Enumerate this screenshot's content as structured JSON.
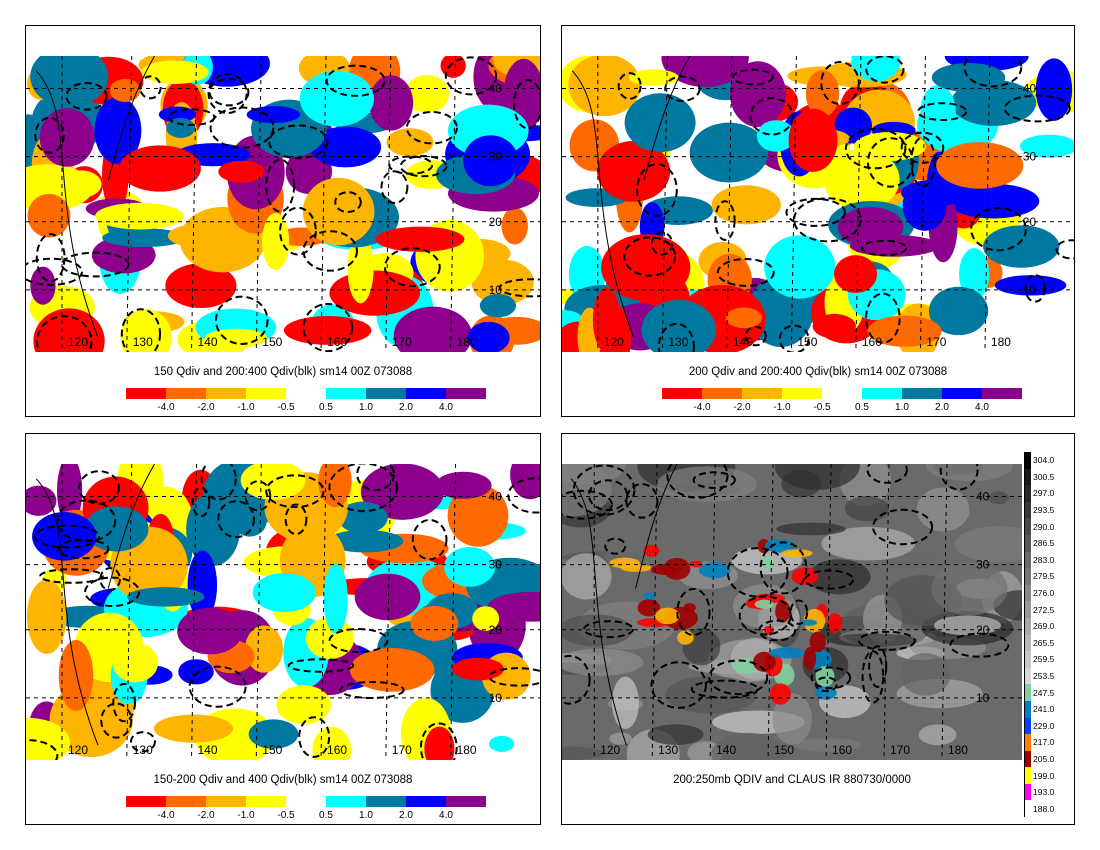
{
  "colors": {
    "div_scale": [
      "#ff0000",
      "#ff6a00",
      "#ffb400",
      "#ffff00",
      "#ffffff",
      "#00ffff",
      "#0078a0",
      "#0000ff",
      "#8c008c"
    ],
    "land": "#000000",
    "contour": "#000000"
  },
  "colorbar_labels": [
    "-4.0",
    "-2.0",
    "-1.0",
    "-0.5",
    "0.5",
    "1.0",
    "2.0",
    "4.0"
  ],
  "lon_labels": [
    "120",
    "130",
    "140",
    "150",
    "160",
    "170",
    "180"
  ],
  "lat_labels": [
    "10",
    "20",
    "30",
    "40"
  ],
  "panels": [
    {
      "caption": "150 Qdiv and 200:400 Qdiv(blk) sm14 00Z 073088"
    },
    {
      "caption": "200 Qdiv and 200:400 Qdiv(blk) sm14 00Z 073088"
    },
    {
      "caption": "150-200 Qdiv and 400 Qdiv(blk) sm14 00Z 073088"
    },
    {
      "caption": "200:250mb QDIV and CLAUS IR 880730/0000"
    }
  ],
  "ir_scale": {
    "labels": [
      "304.0",
      "300.5",
      "297.0",
      "293.5",
      "290.0",
      "286.5",
      "283.0",
      "279.5",
      "276.0",
      "272.5",
      "269.0",
      "265.5",
      "259.5",
      "253.5",
      "247.5",
      "241.0",
      "229.0",
      "217.0",
      "205.0",
      "199.0",
      "193.0",
      "188.0"
    ],
    "colors": [
      "#000000",
      "#181818",
      "#282828",
      "#383838",
      "#484848",
      "#585858",
      "#686868",
      "#787878",
      "#888888",
      "#989898",
      "#a8a8a8",
      "#b8b8b8",
      "#c8c8c8",
      "#d8d8d8",
      "#80d0a0",
      "#0080c0",
      "#0040ff",
      "#ff8000",
      "#a00000",
      "#ffff00",
      "#ff00ff",
      "#ffffff"
    ]
  }
}
